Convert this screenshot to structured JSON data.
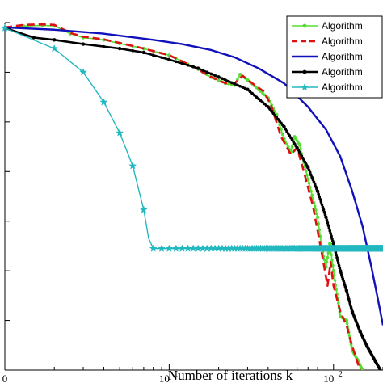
{
  "chart_data": {
    "type": "line",
    "xlabel": "Number of iterations k",
    "ylabel": "",
    "xscale": "log",
    "yscale": "log",
    "xlim": [
      1,
      200
    ],
    "ylim": [
      1e-07,
      1
    ],
    "x_tick_labels": [
      {
        "x": 1,
        "text": "0"
      },
      {
        "x": 10,
        "text": "10",
        "exp": "1"
      },
      {
        "x": 100,
        "text": "10",
        "exp": "2"
      }
    ],
    "legend": {
      "position": "top-right"
    },
    "grid": false,
    "series": [
      {
        "name": "Algorithm",
        "color": "#55dd33",
        "style": "solid",
        "width": 1.6,
        "marker": "dot",
        "points": [
          [
            1,
            0.78
          ],
          [
            1.3,
            0.85
          ],
          [
            1.7,
            0.88
          ],
          [
            2,
            0.86
          ],
          [
            2.5,
            0.6
          ],
          [
            3,
            0.5
          ],
          [
            4,
            0.45
          ],
          [
            5,
            0.38
          ],
          [
            7,
            0.3
          ],
          [
            10,
            0.22
          ],
          [
            14,
            0.13
          ],
          [
            18,
            0.08
          ],
          [
            22,
            0.06
          ],
          [
            25,
            0.055
          ],
          [
            27,
            0.09
          ],
          [
            30,
            0.07
          ],
          [
            35,
            0.045
          ],
          [
            40,
            0.03
          ],
          [
            45,
            0.014
          ],
          [
            50,
            0.0045
          ],
          [
            55,
            0.0025
          ],
          [
            58,
            0.005
          ],
          [
            62,
            0.0035
          ],
          [
            70,
            0.0007
          ],
          [
            80,
            0.00012
          ],
          [
            85,
            2.8e-05
          ],
          [
            90,
            1.2e-05
          ],
          [
            95,
            3.5e-05
          ],
          [
            100,
            1e-05
          ],
          [
            110,
            1.2e-06
          ],
          [
            120,
            1e-06
          ],
          [
            130,
            2.5e-07
          ],
          [
            140,
            1.6e-07
          ],
          [
            150,
            1e-07
          ]
        ]
      },
      {
        "name": "Algorithm",
        "color": "#dd1111",
        "style": "dashed",
        "width": 2.6,
        "marker": "none",
        "points": [
          [
            1,
            0.8
          ],
          [
            1.3,
            0.9
          ],
          [
            1.7,
            0.92
          ],
          [
            2,
            0.9
          ],
          [
            2.5,
            0.62
          ],
          [
            3,
            0.52
          ],
          [
            4,
            0.46
          ],
          [
            5,
            0.39
          ],
          [
            7,
            0.3
          ],
          [
            10,
            0.22
          ],
          [
            14,
            0.13
          ],
          [
            18,
            0.08
          ],
          [
            22,
            0.06
          ],
          [
            25,
            0.06
          ],
          [
            28,
            0.085
          ],
          [
            32,
            0.06
          ],
          [
            38,
            0.04
          ],
          [
            42,
            0.02
          ],
          [
            48,
            0.005
          ],
          [
            55,
            0.0022
          ],
          [
            60,
            0.003
          ],
          [
            65,
            0.0012
          ],
          [
            75,
            0.0002
          ],
          [
            85,
            2.2e-05
          ],
          [
            92,
            5e-06
          ],
          [
            96,
            1.5e-05
          ],
          [
            100,
            5e-06
          ],
          [
            110,
            1.5e-06
          ],
          [
            120,
            8e-07
          ],
          [
            130,
            3e-07
          ],
          [
            145,
            1e-07
          ]
        ]
      },
      {
        "name": "Algorithm",
        "color": "#1111bb",
        "style": "solid",
        "width": 2.4,
        "marker": "none",
        "points": [
          [
            1,
            0.8
          ],
          [
            2,
            0.72
          ],
          [
            4,
            0.6
          ],
          [
            8,
            0.45
          ],
          [
            12,
            0.37
          ],
          [
            18,
            0.28
          ],
          [
            25,
            0.2
          ],
          [
            35,
            0.12
          ],
          [
            50,
            0.06
          ],
          [
            70,
            0.02
          ],
          [
            90,
            0.007
          ],
          [
            110,
            0.002
          ],
          [
            130,
            0.0004
          ],
          [
            150,
            8e-05
          ],
          [
            170,
            1.2e-05
          ],
          [
            185,
            3e-06
          ],
          [
            200,
            8e-07
          ]
        ]
      },
      {
        "name": "Algorithm",
        "color": "#000000",
        "style": "solid",
        "width": 2.6,
        "marker": "dot",
        "points": [
          [
            1,
            0.78
          ],
          [
            1.5,
            0.5
          ],
          [
            2,
            0.45
          ],
          [
            3,
            0.37
          ],
          [
            5,
            0.3
          ],
          [
            7,
            0.25
          ],
          [
            10,
            0.18
          ],
          [
            15,
            0.12
          ],
          [
            20,
            0.08
          ],
          [
            30,
            0.045
          ],
          [
            40,
            0.02
          ],
          [
            50,
            0.008
          ],
          [
            60,
            0.003
          ],
          [
            70,
            0.0012
          ],
          [
            80,
            0.0004
          ],
          [
            90,
            0.00012
          ],
          [
            100,
            3.5e-05
          ],
          [
            110,
            1e-05
          ],
          [
            120,
            4e-06
          ],
          [
            130,
            1.5e-06
          ],
          [
            145,
            6e-07
          ],
          [
            160,
            3e-07
          ],
          [
            180,
            1.5e-07
          ],
          [
            200,
            8e-08
          ]
        ]
      },
      {
        "name": "Algorithm",
        "color": "#22b8c0",
        "style": "solid",
        "width": 1.4,
        "marker": "star",
        "points": [
          [
            1,
            0.78
          ],
          [
            2,
            0.3
          ],
          [
            3,
            0.1
          ],
          [
            4,
            0.025
          ],
          [
            5,
            0.006
          ],
          [
            6,
            0.0013
          ],
          [
            7,
            0.00017
          ],
          [
            7.5,
            4.5e-05
          ],
          [
            8,
            2.8e-05
          ],
          [
            9,
            2.8e-05
          ],
          [
            10,
            2.8e-05
          ],
          [
            20,
            2.8e-05
          ],
          [
            50,
            2.8e-05
          ],
          [
            100,
            2.8e-05
          ],
          [
            200,
            2.8e-05
          ]
        ]
      }
    ]
  }
}
